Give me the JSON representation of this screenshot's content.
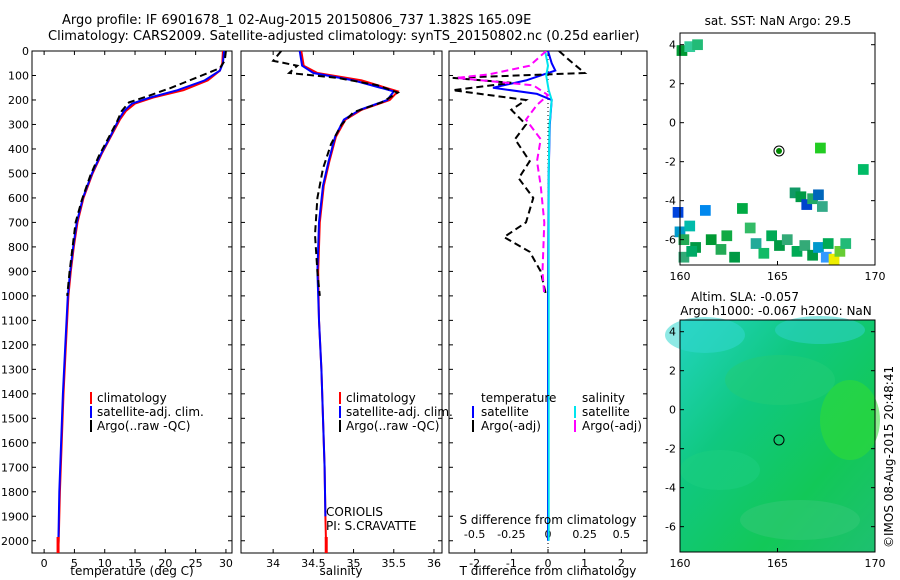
{
  "header": {
    "title_line1": "Argo profile: IF 6901678_1 02-Aug-2015 20150806_737 1.382S 165.09E",
    "title_line2": "Climatology: CARS2009. Satellite-adjusted climatology: synTS_20150802.nc (0.25d earlier)"
  },
  "credit": "©IMOS 08-Aug-2015 20:48:41",
  "colors": {
    "climatology": "#ff0000",
    "satellite": "#0000ff",
    "argo": "#000000",
    "sal_satellite": "#00e5ee",
    "sal_argo": "#ff00ff"
  },
  "chart_data": [
    {
      "type": "line",
      "id": "temperature",
      "xlabel": "temperature (deg C)",
      "xlim": [
        -2,
        31
      ],
      "ylim": [
        2050,
        0
      ],
      "xticks": [
        0,
        5,
        10,
        15,
        20,
        25,
        30
      ],
      "yticks": [
        0,
        100,
        200,
        300,
        400,
        500,
        600,
        700,
        800,
        900,
        1000,
        1100,
        1200,
        1300,
        1400,
        1500,
        1600,
        1700,
        1800,
        1900,
        2000
      ],
      "legend": [
        "climatology",
        "satellite-adj. clim.",
        "Argo(..raw -QC)"
      ],
      "series": [
        {
          "name": "climatology",
          "style": "solid",
          "color": "#ff0000",
          "points": [
            [
              29.5,
              0
            ],
            [
              29.4,
              50
            ],
            [
              29.0,
              80
            ],
            [
              27.0,
              120
            ],
            [
              23.0,
              160
            ],
            [
              18.0,
              190
            ],
            [
              15.0,
              215
            ],
            [
              13.5,
              245
            ],
            [
              12.5,
              280
            ],
            [
              11.0,
              350
            ],
            [
              9.5,
              420
            ],
            [
              8.0,
              500
            ],
            [
              6.5,
              600
            ],
            [
              5.5,
              700
            ],
            [
              4.9,
              800
            ],
            [
              4.4,
              900
            ],
            [
              4.0,
              1000
            ],
            [
              3.6,
              1200
            ],
            [
              3.2,
              1400
            ],
            [
              2.9,
              1600
            ],
            [
              2.6,
              1800
            ],
            [
              2.4,
              2000
            ],
            [
              2.3,
              2040
            ]
          ]
        },
        {
          "name": "satellite-adj. clim.",
          "style": "solid",
          "color": "#0000ff",
          "points": [
            [
              29.7,
              0
            ],
            [
              29.5,
              50
            ],
            [
              29.0,
              80
            ],
            [
              26.5,
              120
            ],
            [
              22.0,
              160
            ],
            [
              17.5,
              190
            ],
            [
              14.5,
              215
            ],
            [
              13.2,
              245
            ],
            [
              12.3,
              280
            ],
            [
              10.9,
              350
            ],
            [
              9.4,
              420
            ],
            [
              7.9,
              500
            ],
            [
              6.4,
              600
            ],
            [
              5.4,
              700
            ],
            [
              4.8,
              800
            ],
            [
              4.3,
              900
            ],
            [
              3.9,
              1000
            ],
            [
              3.5,
              1200
            ],
            [
              3.1,
              1400
            ],
            [
              2.8,
              1600
            ],
            [
              2.5,
              1800
            ],
            [
              2.35,
              2000
            ]
          ]
        },
        {
          "name": "Argo(..raw -QC)",
          "style": "dashed",
          "color": "#000000",
          "points": [
            [
              30.0,
              0
            ],
            [
              29.8,
              40
            ],
            [
              29.0,
              70
            ],
            [
              26.0,
              100
            ],
            [
              21.0,
              150
            ],
            [
              17.0,
              185
            ],
            [
              14.0,
              210
            ],
            [
              12.8,
              245
            ],
            [
              12.0,
              290
            ],
            [
              10.5,
              360
            ],
            [
              9.0,
              430
            ],
            [
              7.6,
              510
            ],
            [
              6.2,
              610
            ],
            [
              5.2,
              700
            ],
            [
              4.7,
              800
            ],
            [
              4.2,
              900
            ],
            [
              3.8,
              1000
            ]
          ]
        }
      ]
    },
    {
      "type": "line",
      "id": "salinity",
      "xlabel": "salinity",
      "xlim": [
        33.6,
        36.1
      ],
      "ylim": [
        2050,
        0
      ],
      "xticks": [
        34,
        34.5,
        35,
        35.5,
        36
      ],
      "legend": [
        "climatology",
        "satellite-adj. clim.",
        "Argo(..raw -QC)"
      ],
      "annotation": [
        "CORIOLIS",
        "PI: S.CRAVATTE"
      ],
      "series": [
        {
          "name": "climatology",
          "style": "solid",
          "color": "#ff0000",
          "points": [
            [
              34.35,
              0
            ],
            [
              34.38,
              60
            ],
            [
              34.55,
              90
            ],
            [
              35.1,
              120
            ],
            [
              35.55,
              165
            ],
            [
              35.45,
              200
            ],
            [
              35.1,
              240
            ],
            [
              34.9,
              280
            ],
            [
              34.78,
              350
            ],
            [
              34.7,
              450
            ],
            [
              34.63,
              550
            ],
            [
              34.58,
              700
            ],
            [
              34.56,
              900
            ],
            [
              34.57,
              1100
            ],
            [
              34.6,
              1300
            ],
            [
              34.62,
              1500
            ],
            [
              34.64,
              1700
            ],
            [
              34.65,
              1900
            ],
            [
              34.66,
              2040
            ]
          ]
        },
        {
          "name": "satellite-adj. clim.",
          "style": "solid",
          "color": "#0000ff",
          "points": [
            [
              34.33,
              0
            ],
            [
              34.36,
              60
            ],
            [
              34.5,
              90
            ],
            [
              35.0,
              120
            ],
            [
              35.5,
              165
            ],
            [
              35.42,
              200
            ],
            [
              35.08,
              240
            ],
            [
              34.88,
              280
            ],
            [
              34.77,
              350
            ],
            [
              34.69,
              450
            ],
            [
              34.62,
              550
            ],
            [
              34.57,
              700
            ],
            [
              34.55,
              900
            ],
            [
              34.57,
              1100
            ],
            [
              34.6,
              1300
            ],
            [
              34.62,
              1500
            ],
            [
              34.64,
              1700
            ],
            [
              34.65,
              1900
            ]
          ]
        },
        {
          "name": "Argo(..raw -QC)",
          "style": "dashed",
          "color": "#000000",
          "points": [
            [
              34.1,
              0
            ],
            [
              34.0,
              40
            ],
            [
              34.3,
              60
            ],
            [
              34.2,
              90
            ],
            [
              34.8,
              110
            ],
            [
              35.3,
              140
            ],
            [
              35.55,
              170
            ],
            [
              35.35,
              210
            ],
            [
              35.0,
              250
            ],
            [
              34.85,
              300
            ],
            [
              34.72,
              380
            ],
            [
              34.62,
              480
            ],
            [
              34.55,
              600
            ],
            [
              34.52,
              750
            ],
            [
              34.55,
              900
            ],
            [
              34.58,
              1000
            ]
          ]
        }
      ]
    },
    {
      "type": "line",
      "id": "difference",
      "xlabel": "T difference from climatology",
      "xlabel_top": "S difference from climatology",
      "xlim": [
        -2.7,
        2.7
      ],
      "ylim": [
        2050,
        0
      ],
      "xticks": [
        -2,
        -1,
        0,
        1,
        2
      ],
      "sticks": [
        "-0.5",
        "-0.25",
        "0",
        "0.25",
        "0.5"
      ],
      "legend_temperature_heading": "temperature",
      "legend_salinity_heading": "salinity",
      "legend_temperature": [
        "satellite",
        "Argo(-adj)"
      ],
      "legend_salinity": [
        "satellite",
        "Argo(-adj)"
      ],
      "series": [
        {
          "name": "T satellite",
          "style": "solid",
          "color": "#0000ff",
          "points": [
            [
              0,
              0
            ],
            [
              0.1,
              50
            ],
            [
              0.2,
              80
            ],
            [
              -0.6,
              120
            ],
            [
              -1.5,
              150
            ],
            [
              -0.3,
              175
            ],
            [
              0.1,
              200
            ],
            [
              0.05,
              300
            ],
            [
              0.02,
              500
            ],
            [
              0,
              1000
            ],
            [
              0,
              1500
            ],
            [
              0,
              2000
            ]
          ]
        },
        {
          "name": "T Argo(-adj)",
          "style": "dashed",
          "color": "#000000",
          "points": [
            [
              0.3,
              0
            ],
            [
              0.6,
              40
            ],
            [
              1.0,
              90
            ],
            [
              -2.6,
              110
            ],
            [
              -1.0,
              130
            ],
            [
              -2.6,
              160
            ],
            [
              -0.6,
              200
            ],
            [
              -1.0,
              240
            ],
            [
              -0.6,
              300
            ],
            [
              -0.9,
              360
            ],
            [
              -0.5,
              450
            ],
            [
              -0.8,
              520
            ],
            [
              -0.4,
              600
            ],
            [
              -0.6,
              700
            ],
            [
              -1.2,
              760
            ],
            [
              -0.5,
              820
            ],
            [
              -0.2,
              900
            ],
            [
              -0.05,
              1000
            ]
          ]
        },
        {
          "name": "S satellite",
          "style": "solid",
          "color": "#00e5ee",
          "points": [
            [
              -0.08,
              0
            ],
            [
              0.0,
              60
            ],
            [
              -0.05,
              100
            ],
            [
              0.02,
              160
            ],
            [
              0.1,
              200
            ],
            [
              0.04,
              300
            ],
            [
              0.02,
              500
            ],
            [
              0.02,
              1000
            ],
            [
              0.02,
              1500
            ],
            [
              0.02,
              2000
            ]
          ]
        },
        {
          "name": "S Argo(-adj)",
          "style": "dashed",
          "color": "#ff00ff",
          "points": [
            [
              -0.05,
              0
            ],
            [
              -0.5,
              60
            ],
            [
              -1.6,
              95
            ],
            [
              -2.5,
              110
            ],
            [
              -0.4,
              140
            ],
            [
              0.0,
              180
            ],
            [
              -0.3,
              220
            ],
            [
              -0.6,
              280
            ],
            [
              -0.2,
              360
            ],
            [
              -0.3,
              450
            ],
            [
              -0.2,
              550
            ],
            [
              -0.1,
              700
            ],
            [
              -0.15,
              900
            ],
            [
              -0.1,
              1000
            ]
          ]
        }
      ]
    },
    {
      "type": "heatmap",
      "id": "sst-map",
      "title": "sat. SST: NaN Argo: 29.5",
      "xlim": [
        160,
        170
      ],
      "ylim": [
        -7.3,
        4.6
      ],
      "xticks": [
        160,
        165,
        170
      ],
      "yticks": [
        -6,
        -4,
        -2,
        0,
        2,
        4
      ],
      "marker": [
        165.09,
        -1.38
      ],
      "cells": [
        [
          160.1,
          3.7,
          "#009933"
        ],
        [
          160.5,
          3.9,
          "#33cc99"
        ],
        [
          160.9,
          4.0,
          "#22bb77"
        ],
        [
          159.9,
          -4.6,
          "#0044dd"
        ],
        [
          160.0,
          -5.6,
          "#0099cc"
        ],
        [
          160.2,
          -6.0,
          "#22aa55"
        ],
        [
          160.5,
          -5.3,
          "#00bbaa"
        ],
        [
          160.8,
          -6.4,
          "#009944"
        ],
        [
          160.2,
          -6.9,
          "#33aa77"
        ],
        [
          160.6,
          -6.6,
          "#00aa66"
        ],
        [
          161.3,
          -4.5,
          "#0088ee"
        ],
        [
          161.6,
          -6.0,
          "#009933"
        ],
        [
          162.1,
          -6.5,
          "#22aa55"
        ],
        [
          162.4,
          -5.8,
          "#11aa44"
        ],
        [
          162.8,
          -6.9,
          "#009944"
        ],
        [
          163.2,
          -4.4,
          "#00aa44"
        ],
        [
          163.6,
          -5.4,
          "#33bb66"
        ],
        [
          163.9,
          -6.2,
          "#22aa99"
        ],
        [
          164.3,
          -6.7,
          "#11bb66"
        ],
        [
          164.7,
          -5.8,
          "#00aa55"
        ],
        [
          165.1,
          -6.3,
          "#009944"
        ],
        [
          165.5,
          -6.0,
          "#33aa77"
        ],
        [
          165.9,
          -3.6,
          "#119966"
        ],
        [
          166.2,
          -3.8,
          "#009944"
        ],
        [
          166.5,
          -4.2,
          "#0044cc"
        ],
        [
          166.8,
          -3.9,
          "#22aa66"
        ],
        [
          167.1,
          -3.7,
          "#0066bb"
        ],
        [
          167.3,
          -4.3,
          "#33aa88"
        ],
        [
          166.0,
          -6.6,
          "#00aa55"
        ],
        [
          166.4,
          -6.3,
          "#33aa77"
        ],
        [
          166.8,
          -6.8,
          "#009944"
        ],
        [
          167.1,
          -6.4,
          "#0099cc"
        ],
        [
          167.5,
          -6.9,
          "#3399ff"
        ],
        [
          167.9,
          -7.0,
          "#eeee00"
        ],
        [
          168.2,
          -6.6,
          "#66cc33"
        ],
        [
          167.6,
          -6.2,
          "#00aa55"
        ],
        [
          168.5,
          -6.2,
          "#22bb77"
        ],
        [
          167.2,
          -1.3,
          "#22cc22"
        ],
        [
          169.4,
          -2.4,
          "#00bb66"
        ]
      ]
    },
    {
      "type": "heatmap",
      "id": "sla-map",
      "title": "Altim. SLA: -0.057",
      "subtitle": "Argo h1000: -0.067 h2000: NaN",
      "xlim": [
        160,
        170
      ],
      "ylim": [
        -7.3,
        4.6
      ],
      "xticks": [
        160,
        165,
        170
      ],
      "yticks": [
        -6,
        -4,
        -2,
        0,
        2,
        4
      ],
      "marker": [
        165.09,
        -1.38
      ]
    }
  ]
}
